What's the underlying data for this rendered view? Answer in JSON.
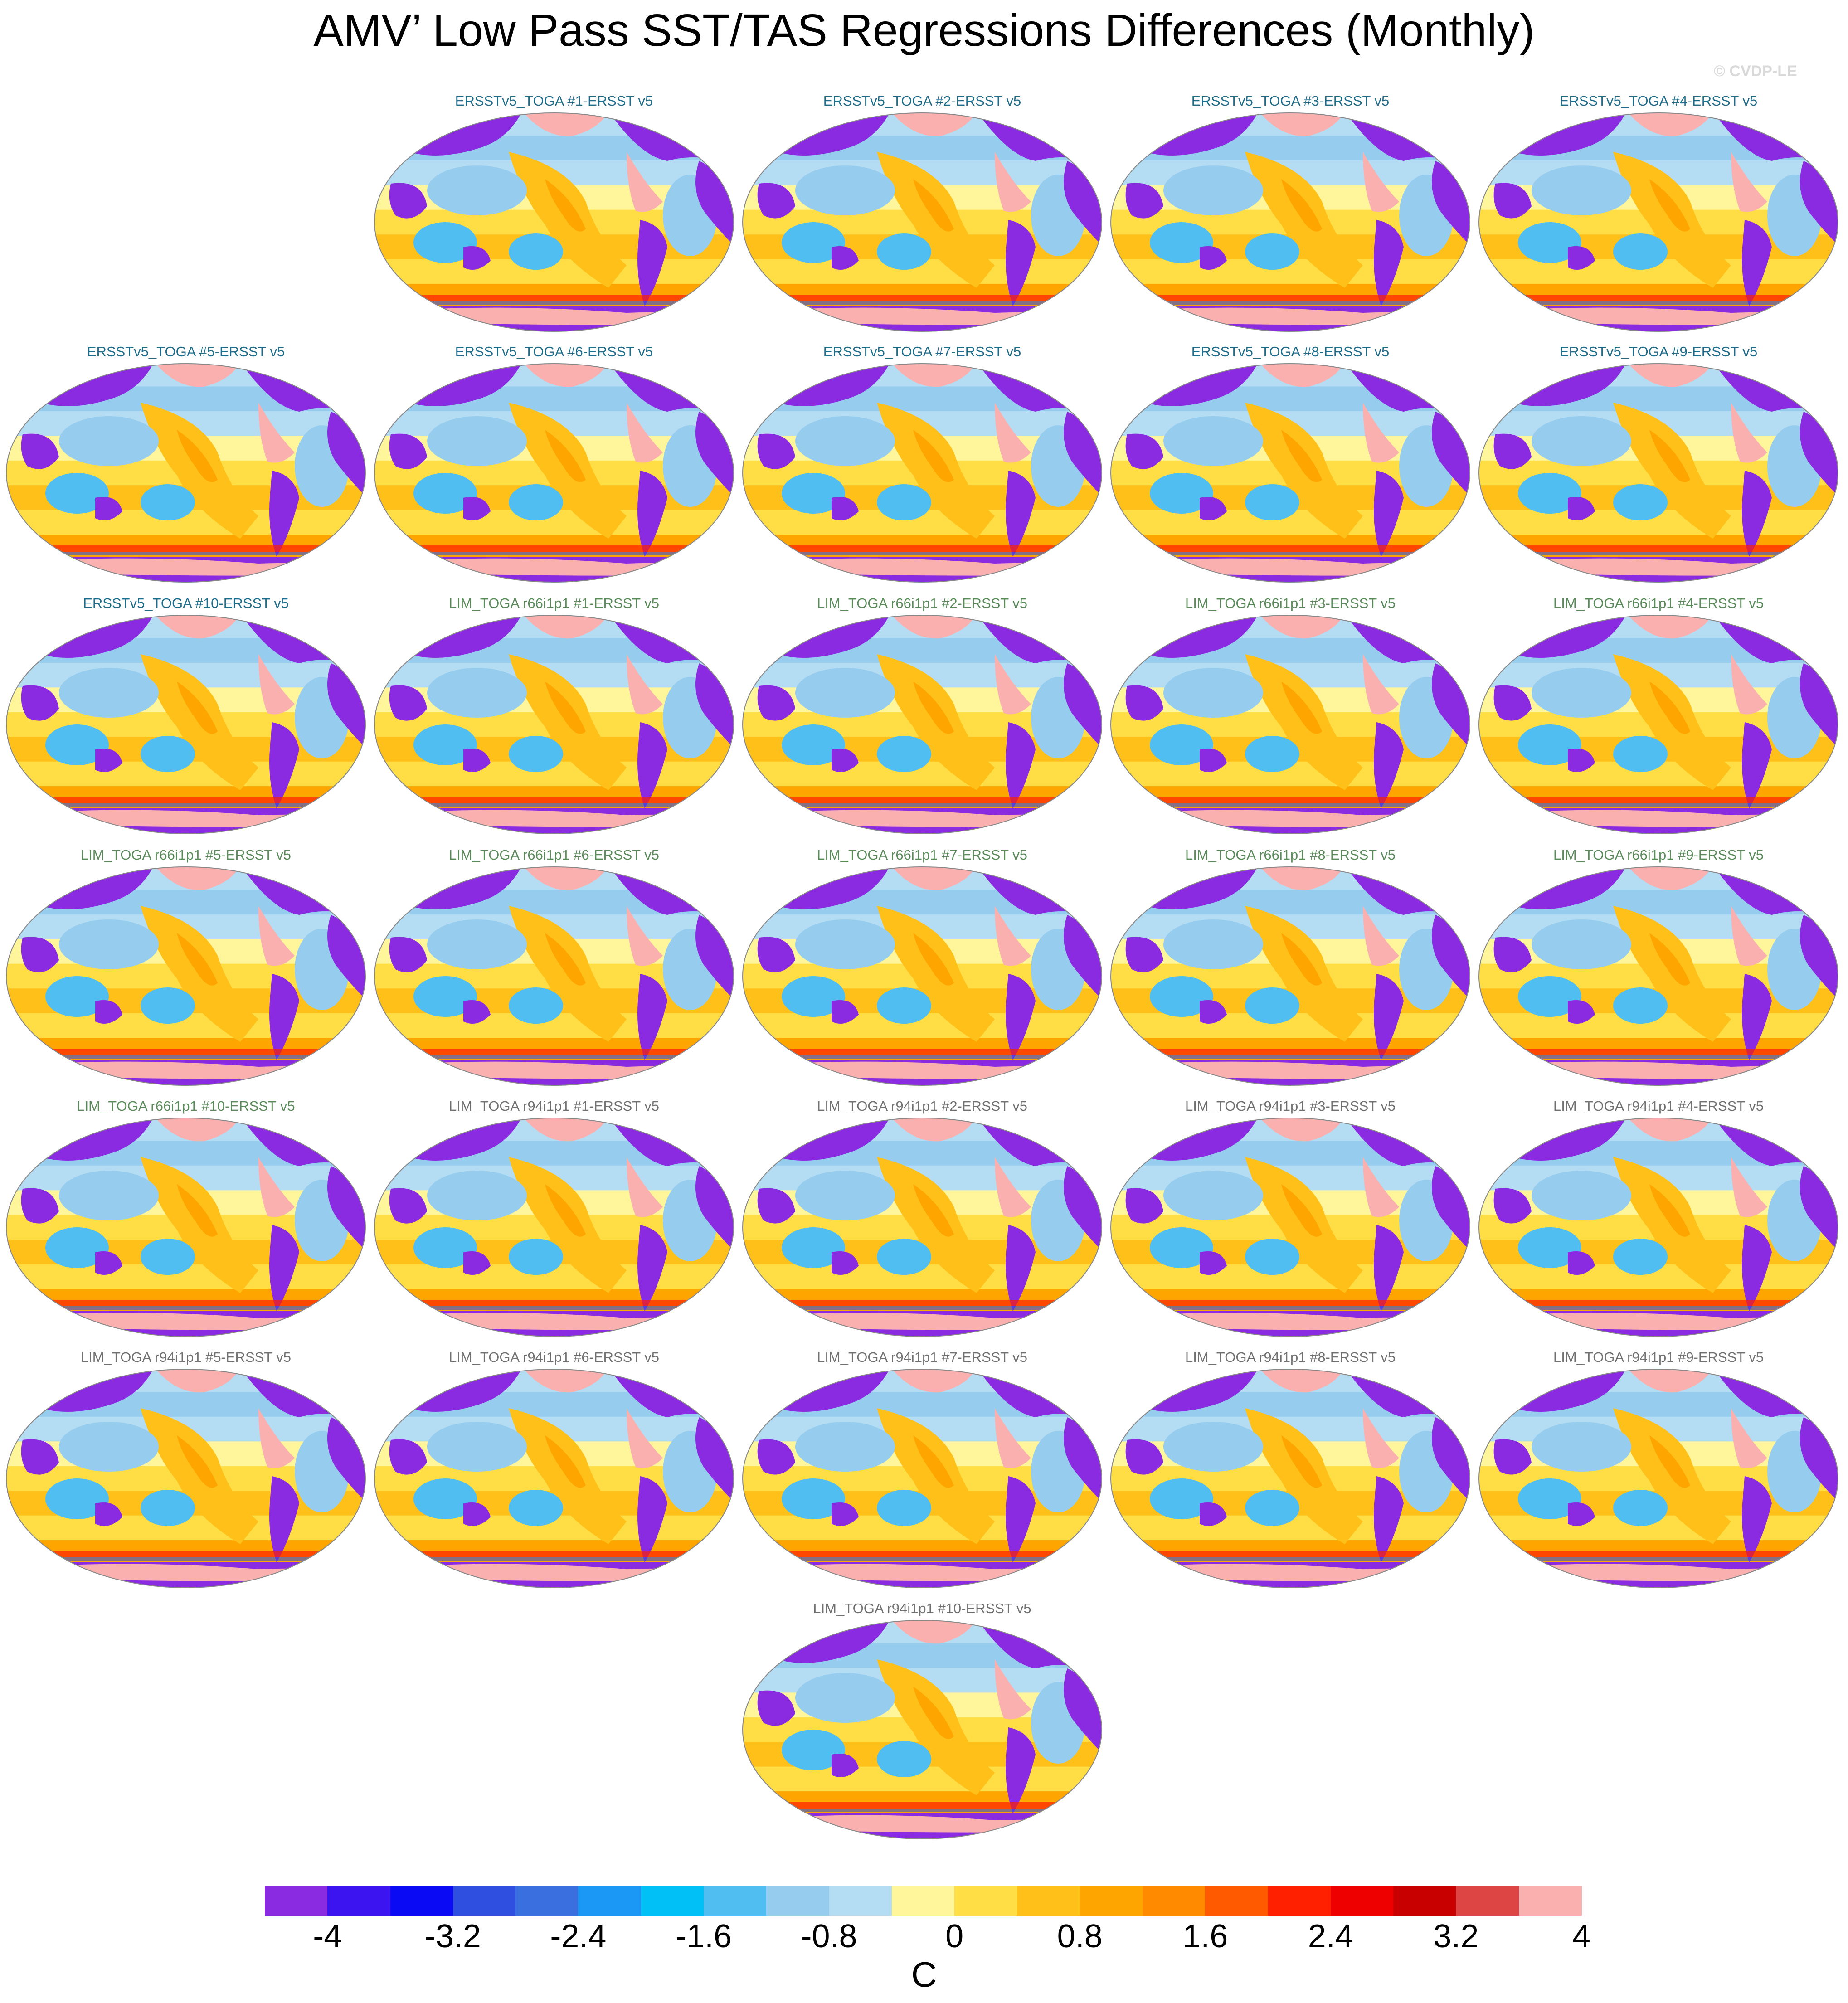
{
  "title": "AMV’ Low Pass SST/TAS Regressions Differences (Monthly)",
  "watermark": "© CVDP-LE",
  "panels": [
    {
      "label": "ERSSTv5_TOGA #1-ERSST v5",
      "label_color": "#1f6b8a"
    },
    {
      "label": "ERSSTv5_TOGA #2-ERSST v5",
      "label_color": "#1f6b8a"
    },
    {
      "label": "ERSSTv5_TOGA #3-ERSST v5",
      "label_color": "#1f6b8a"
    },
    {
      "label": "ERSSTv5_TOGA #4-ERSST v5",
      "label_color": "#1f6b8a"
    },
    {
      "label": "ERSSTv5_TOGA #5-ERSST v5",
      "label_color": "#1f6b8a"
    },
    {
      "label": "ERSSTv5_TOGA #6-ERSST v5",
      "label_color": "#1f6b8a"
    },
    {
      "label": "ERSSTv5_TOGA #7-ERSST v5",
      "label_color": "#1f6b8a"
    },
    {
      "label": "ERSSTv5_TOGA #8-ERSST v5",
      "label_color": "#1f6b8a"
    },
    {
      "label": "ERSSTv5_TOGA #9-ERSST v5",
      "label_color": "#1f6b8a"
    },
    {
      "label": "ERSSTv5_TOGA #10-ERSST v5",
      "label_color": "#1f6b8a"
    },
    {
      "label": "LIM_TOGA r66i1p1 #1-ERSST v5",
      "label_color": "#5a8a5a"
    },
    {
      "label": "LIM_TOGA r66i1p1 #2-ERSST v5",
      "label_color": "#5a8a5a"
    },
    {
      "label": "LIM_TOGA r66i1p1 #3-ERSST v5",
      "label_color": "#5a8a5a"
    },
    {
      "label": "LIM_TOGA r66i1p1 #4-ERSST v5",
      "label_color": "#5a8a5a"
    },
    {
      "label": "LIM_TOGA r66i1p1 #5-ERSST v5",
      "label_color": "#5a8a5a"
    },
    {
      "label": "LIM_TOGA r66i1p1 #6-ERSST v5",
      "label_color": "#5a8a5a"
    },
    {
      "label": "LIM_TOGA r66i1p1 #7-ERSST v5",
      "label_color": "#5a8a5a"
    },
    {
      "label": "LIM_TOGA r66i1p1 #8-ERSST v5",
      "label_color": "#5a8a5a"
    },
    {
      "label": "LIM_TOGA r66i1p1 #9-ERSST v5",
      "label_color": "#5a8a5a"
    },
    {
      "label": "LIM_TOGA r66i1p1 #10-ERSST v5",
      "label_color": "#5a8a5a"
    },
    {
      "label": "LIM_TOGA r94i1p1 #1-ERSST v5",
      "label_color": "#707070"
    },
    {
      "label": "LIM_TOGA r94i1p1 #2-ERSST v5",
      "label_color": "#707070"
    },
    {
      "label": "LIM_TOGA r94i1p1 #3-ERSST v5",
      "label_color": "#707070"
    },
    {
      "label": "LIM_TOGA r94i1p1 #4-ERSST v5",
      "label_color": "#707070"
    },
    {
      "label": "LIM_TOGA r94i1p1 #5-ERSST v5",
      "label_color": "#707070"
    },
    {
      "label": "LIM_TOGA r94i1p1 #6-ERSST v5",
      "label_color": "#707070"
    },
    {
      "label": "LIM_TOGA r94i1p1 #7-ERSST v5",
      "label_color": "#707070"
    },
    {
      "label": "LIM_TOGA r94i1p1 #8-ERSST v5",
      "label_color": "#707070"
    },
    {
      "label": "LIM_TOGA r94i1p1 #9-ERSST v5",
      "label_color": "#707070"
    },
    {
      "label": "LIM_TOGA r94i1p1 #10-ERSST v5",
      "label_color": "#707070"
    }
  ],
  "colorbar": {
    "colors": [
      "#8a2be2",
      "#3c14f0",
      "#0a0af5",
      "#2e4fe0",
      "#3a6fe0",
      "#1b98f5",
      "#00c0f5",
      "#50bef0",
      "#96cdee",
      "#b4dcf2",
      "#fff59a",
      "#ffdd44",
      "#ffc01a",
      "#ffa500",
      "#ff8a00",
      "#ff5a00",
      "#ff2000",
      "#ee0000",
      "#c80000",
      "#dd4444",
      "#fbb0b0"
    ],
    "tick_labels": [
      "-4",
      "-3.2",
      "-2.4",
      "-1.6",
      "-0.8",
      "0",
      "0.8",
      "1.6",
      "2.4",
      "3.2",
      "4"
    ],
    "units": "C"
  }
}
